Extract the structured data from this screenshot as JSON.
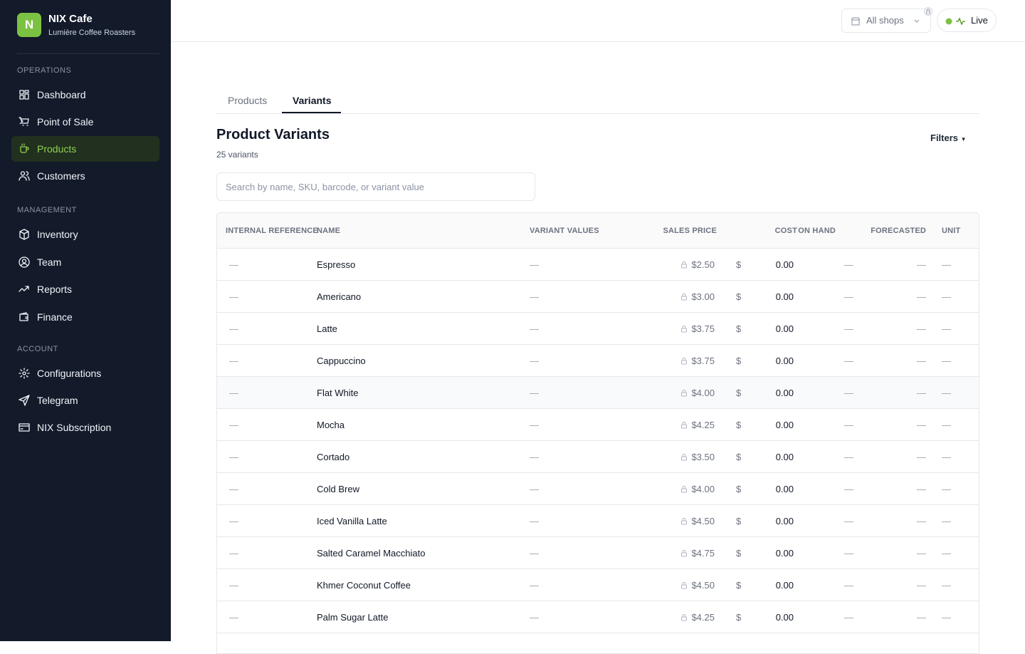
{
  "sidebar": {
    "brand": {
      "logo": "N",
      "name": "NIX Cafe",
      "subtitle": "Lumière Coffee Roasters"
    },
    "sections": [
      {
        "title": "OPERATIONS",
        "items": [
          "Dashboard",
          "Point of Sale",
          "Products",
          "Customers"
        ]
      },
      {
        "title": "MANAGEMENT",
        "items": [
          "Inventory",
          "Team",
          "Reports",
          "Finance"
        ]
      },
      {
        "title": "ACCOUNT",
        "items": [
          "Configurations",
          "Telegram",
          "NIX Subscription"
        ]
      }
    ],
    "active": "Products"
  },
  "topbar": {
    "shop_selector": "All shops",
    "status": "Live"
  },
  "tabs": [
    "Products",
    "Variants"
  ],
  "active_tab": "Variants",
  "header": {
    "title": "Product Variants",
    "count": "25 variants",
    "filters": "Filters"
  },
  "search": {
    "placeholder": "Search by name, SKU, barcode, or variant value"
  },
  "table": {
    "columns": [
      "INTERNAL REFERENCE",
      "NAME",
      "VARIANT VALUES",
      "SALES PRICE",
      "COST",
      "ON HAND",
      "FORECASTED",
      "UNIT"
    ],
    "rows": [
      [
        "—",
        "Espresso",
        "—",
        "$2.50",
        "$",
        "0.00",
        "—",
        "—",
        "—"
      ],
      [
        "—",
        "Americano",
        "—",
        "$3.00",
        "$",
        "0.00",
        "—",
        "—",
        "—"
      ],
      [
        "—",
        "Latte",
        "—",
        "$3.75",
        "$",
        "0.00",
        "—",
        "—",
        "—"
      ],
      [
        "—",
        "Cappuccino",
        "—",
        "$3.75",
        "$",
        "0.00",
        "—",
        "—",
        "—"
      ],
      [
        "—",
        "Flat White",
        "—",
        "$4.00",
        "$",
        "0.00",
        "—",
        "—",
        "—"
      ],
      [
        "—",
        "Mocha",
        "—",
        "$4.25",
        "$",
        "0.00",
        "—",
        "—",
        "—"
      ],
      [
        "—",
        "Cortado",
        "—",
        "$3.50",
        "$",
        "0.00",
        "—",
        "—",
        "—"
      ],
      [
        "—",
        "Cold Brew",
        "—",
        "$4.00",
        "$",
        "0.00",
        "—",
        "—",
        "—"
      ],
      [
        "—",
        "Iced Vanilla Latte",
        "—",
        "$4.50",
        "$",
        "0.00",
        "—",
        "—",
        "—"
      ],
      [
        "—",
        "Salted Caramel Macchiato",
        "—",
        "$4.75",
        "$",
        "0.00",
        "—",
        "—",
        "—"
      ],
      [
        "—",
        "Khmer Coconut Coffee",
        "—",
        "$4.50",
        "$",
        "0.00",
        "—",
        "—",
        "—"
      ],
      [
        "—",
        "Palm Sugar Latte",
        "—",
        "$4.25",
        "$",
        "0.00",
        "—",
        "—",
        "—"
      ]
    ]
  }
}
